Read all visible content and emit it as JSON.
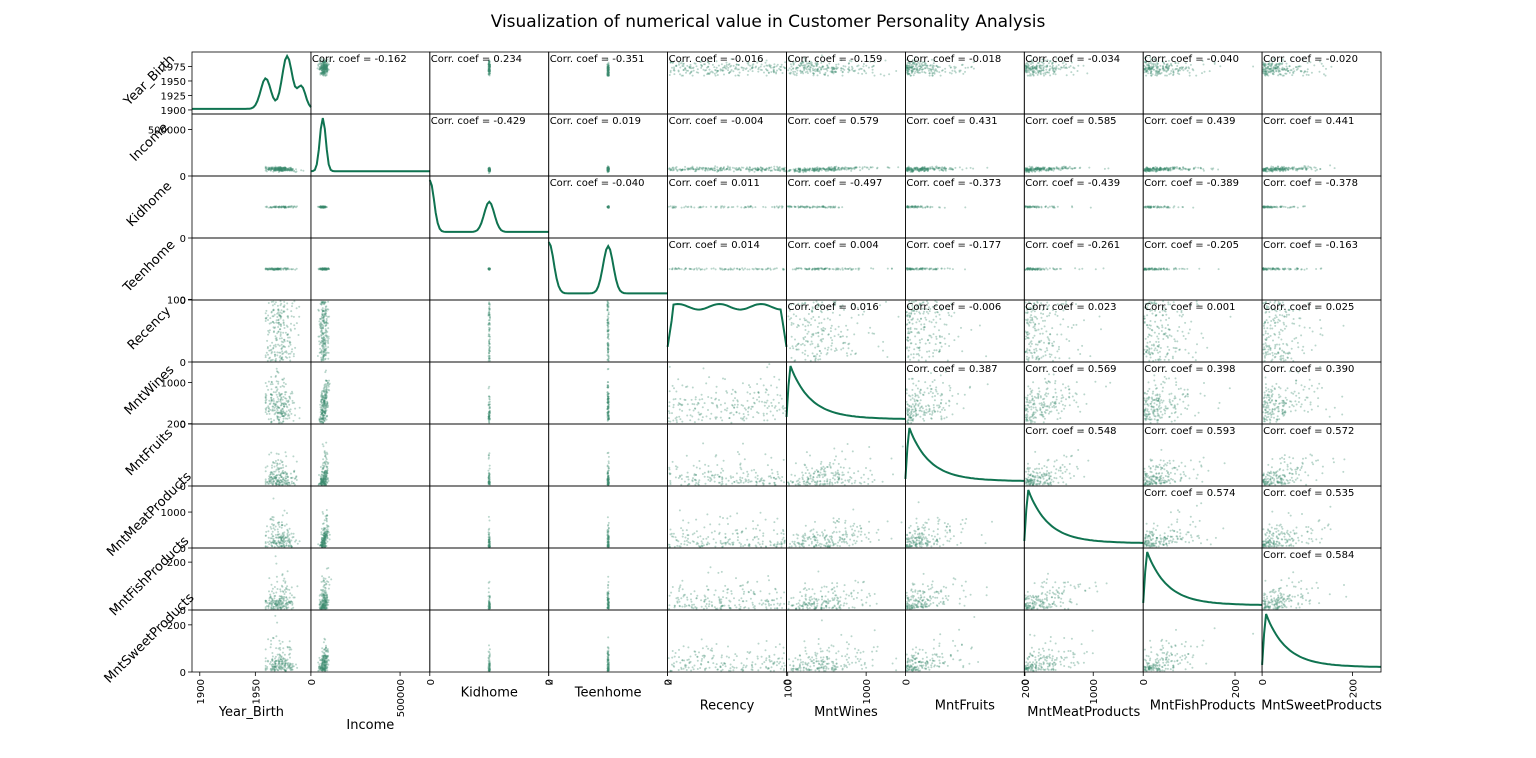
{
  "chart_data": {
    "type": "scatter",
    "chart_kind": "scatter-matrix",
    "title": "Visualization of numerical value in Customer Personality Analysis",
    "variables": [
      "Year_Birth",
      "Income",
      "Kidhome",
      "Teenhome",
      "Recency",
      "MntWines",
      "MntFruits",
      "MntMeatProducts",
      "MntFishProducts",
      "MntSweetProducts"
    ],
    "diagonal": "kde",
    "point_color": "#3a8a6e",
    "line_color": "#0f7350",
    "axes": [
      {
        "name": "Year_Birth",
        "range": [
          1893,
          2000
        ],
        "yticks": [
          {
            "v": 1900,
            "l": "1900"
          },
          {
            "v": 1925,
            "l": "1925"
          },
          {
            "v": 1950,
            "l": "1950"
          },
          {
            "v": 1975,
            "l": "1975"
          }
        ],
        "xticks": [
          {
            "v": 1900,
            "l": "1900"
          },
          {
            "v": 1950,
            "l": "1950"
          }
        ]
      },
      {
        "name": "Income",
        "range": [
          0,
          666666
        ],
        "yticks": [
          {
            "v": 0,
            "l": "0"
          },
          {
            "v": 500000,
            "l": "500000"
          }
        ],
        "xticks": [
          {
            "v": 0,
            "l": "0"
          },
          {
            "v": 500000,
            "l": "500000"
          }
        ]
      },
      {
        "name": "Kidhome",
        "range": [
          0,
          2
        ],
        "yticks": [
          {
            "v": 0,
            "l": "0"
          }
        ],
        "xticks": [
          {
            "v": 0,
            "l": "0"
          },
          {
            "v": 2,
            "l": "2"
          }
        ]
      },
      {
        "name": "Teenhome",
        "range": [
          0,
          2
        ],
        "yticks": [
          {
            "v": 0,
            "l": "0"
          }
        ],
        "xticks": [
          {
            "v": 0,
            "l": "0"
          },
          {
            "v": 2,
            "l": "2"
          }
        ]
      },
      {
        "name": "Recency",
        "range": [
          0,
          99
        ],
        "yticks": [
          {
            "v": 0,
            "l": "0"
          },
          {
            "v": 100,
            "l": "100"
          }
        ],
        "xticks": [
          {
            "v": 0,
            "l": "0"
          },
          {
            "v": 100,
            "l": "100"
          }
        ]
      },
      {
        "name": "MntWines",
        "range": [
          0,
          1493
        ],
        "yticks": [
          {
            "v": 0,
            "l": "0"
          },
          {
            "v": 1000,
            "l": "1000"
          }
        ],
        "xticks": [
          {
            "v": 0,
            "l": "0"
          },
          {
            "v": 1000,
            "l": "1000"
          }
        ]
      },
      {
        "name": "MntFruits",
        "range": [
          0,
          199
        ],
        "yticks": [
          {
            "v": 0,
            "l": "0"
          },
          {
            "v": 200,
            "l": "200"
          }
        ],
        "xticks": [
          {
            "v": 0,
            "l": "0"
          },
          {
            "v": 200,
            "l": "200"
          }
        ]
      },
      {
        "name": "MntMeatProducts",
        "range": [
          0,
          1725
        ],
        "yticks": [
          {
            "v": 0,
            "l": "0"
          },
          {
            "v": 1000,
            "l": "1000"
          }
        ],
        "xticks": [
          {
            "v": 0,
            "l": "0"
          },
          {
            "v": 1000,
            "l": "1000"
          }
        ]
      },
      {
        "name": "MntFishProducts",
        "range": [
          0,
          259
        ],
        "yticks": [
          {
            "v": 0,
            "l": "0"
          },
          {
            "v": 200,
            "l": "200"
          }
        ],
        "xticks": [
          {
            "v": 0,
            "l": "0"
          },
          {
            "v": 200,
            "l": "200"
          }
        ]
      },
      {
        "name": "MntSweetProducts",
        "range": [
          0,
          263
        ],
        "yticks": [
          {
            "v": 0,
            "l": "0"
          },
          {
            "v": 200,
            "l": "200"
          }
        ],
        "xticks": [
          {
            "v": 0,
            "l": "0"
          },
          {
            "v": 200,
            "l": "200"
          }
        ]
      }
    ],
    "correlation_prefix": "Corr. coef = ",
    "correlations": [
      [
        "-0.162",
        "0.234",
        "-0.351",
        "-0.016",
        "-0.159",
        "-0.018",
        "-0.034",
        "-0.040",
        "-0.020"
      ],
      [
        "-0.429",
        "0.019",
        "-0.004",
        "0.579",
        "0.431",
        "0.585",
        "0.439",
        "0.441"
      ],
      [
        "-0.040",
        "0.011",
        "-0.497",
        "-0.373",
        "-0.439",
        "-0.389",
        "-0.378"
      ],
      [
        "0.014",
        "0.004",
        "-0.177",
        "-0.261",
        "-0.205",
        "-0.163"
      ],
      [
        "0.016",
        "-0.006",
        "0.023",
        "0.001",
        "0.025"
      ],
      [
        "0.387",
        "0.569",
        "0.398",
        "0.390"
      ],
      [
        "0.548",
        "0.593",
        "0.572"
      ],
      [
        "0.574",
        "0.535"
      ],
      [
        "0.584"
      ]
    ]
  }
}
